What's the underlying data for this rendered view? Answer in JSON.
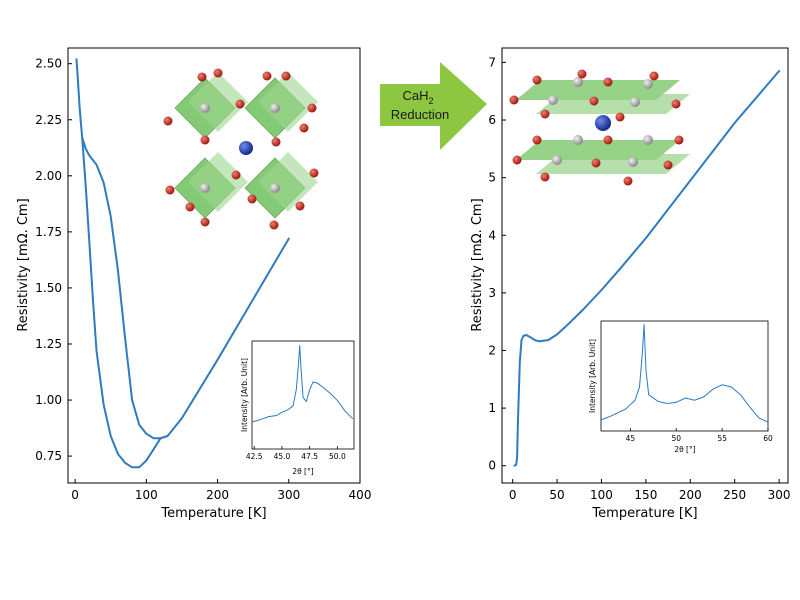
{
  "colors": {
    "curve": "#2e7bbf",
    "arrow": "#8dc641",
    "octahedron": "#5cb848",
    "oxygen": "#c0281b",
    "metal": "#a8a8a8",
    "cation": "#1f3fa8"
  },
  "arrow": {
    "line1": "CaH",
    "subscript": "2",
    "line2": "Reduction"
  },
  "chart_data": [
    {
      "type": "line",
      "title": "",
      "xlabel": "Temperature [K]",
      "ylabel": "Resistivity [mΩ. Cm]",
      "xlim": [
        -10,
        400
      ],
      "ylim": [
        0.63,
        2.57
      ],
      "xticks": [
        0,
        100,
        200,
        300,
        400
      ],
      "yticks": [
        0.75,
        1.0,
        1.25,
        1.5,
        1.75,
        2.0,
        2.25,
        2.5
      ],
      "ytick_labels": [
        "0.75",
        "1.00",
        "1.25",
        "1.50",
        "1.75",
        "2.00",
        "2.25",
        "2.50"
      ],
      "grid": false,
      "series": [
        {
          "x": [
            2,
            4,
            6,
            8,
            10,
            15,
            20,
            30,
            40,
            50,
            60,
            70,
            80,
            90,
            100,
            110,
            120,
            130,
            150,
            200,
            250,
            300
          ],
          "y": [
            2.52,
            2.42,
            2.32,
            2.24,
            2.17,
            2.12,
            2.09,
            2.05,
            1.97,
            1.82,
            1.58,
            1.28,
            1.0,
            0.89,
            0.85,
            0.83,
            0.83,
            0.84,
            0.92,
            1.18,
            1.45,
            1.72
          ]
        },
        {
          "x": [
            10,
            15,
            20,
            25,
            30,
            40,
            50,
            60,
            70,
            80,
            90,
            100,
            110,
            120,
            130
          ],
          "y": [
            2.17,
            1.95,
            1.7,
            1.45,
            1.22,
            0.98,
            0.84,
            0.76,
            0.72,
            0.7,
            0.7,
            0.73,
            0.78,
            0.83,
            0.84
          ]
        }
      ],
      "inset": {
        "xlabel": "2θ [°]",
        "ylabel": "Intensity [Arb. Unit]",
        "xlim": [
          42.3,
          51.5
        ],
        "xticks": [
          42.5,
          45.0,
          47.5,
          50.0
        ],
        "xtick_labels": [
          "42.5",
          "45.0",
          "47.5",
          "50.0"
        ],
        "ylim": [
          0,
          1
        ],
        "x": [
          42.3,
          43.0,
          43.8,
          44.5,
          45.0,
          45.5,
          46.0,
          46.3,
          46.5,
          46.6,
          46.7,
          46.9,
          47.2,
          47.5,
          47.8,
          48.2,
          48.7,
          49.3,
          50.0,
          50.7,
          51.4
        ],
        "y": [
          0.25,
          0.27,
          0.3,
          0.31,
          0.34,
          0.36,
          0.4,
          0.55,
          0.8,
          0.96,
          0.78,
          0.48,
          0.44,
          0.55,
          0.62,
          0.61,
          0.57,
          0.52,
          0.45,
          0.35,
          0.28
        ]
      }
    },
    {
      "type": "line",
      "title": "",
      "xlabel": "Temperature [K]",
      "ylabel": "Resistivity [mΩ. Cm]",
      "xlim": [
        -12,
        310
      ],
      "ylim": [
        -0.3,
        7.25
      ],
      "xticks": [
        0,
        50,
        100,
        150,
        200,
        250,
        300
      ],
      "yticks": [
        0,
        1,
        2,
        3,
        4,
        5,
        6,
        7
      ],
      "ytick_labels": [
        "0",
        "1",
        "2",
        "3",
        "4",
        "5",
        "6",
        "7"
      ],
      "grid": false,
      "series": [
        {
          "x": [
            2,
            4,
            5,
            6,
            8,
            10,
            12,
            15,
            20,
            25,
            30,
            40,
            50,
            60,
            80,
            100,
            120,
            150,
            200,
            250,
            300
          ],
          "y": [
            0.0,
            0.02,
            0.15,
            0.8,
            1.8,
            2.18,
            2.25,
            2.27,
            2.23,
            2.18,
            2.16,
            2.18,
            2.28,
            2.42,
            2.72,
            3.05,
            3.4,
            3.95,
            4.95,
            5.95,
            6.85
          ]
        }
      ],
      "inset": {
        "xlabel": "2θ [°]",
        "ylabel": "Intensity [Arb. Unit]",
        "xlim": [
          41.8,
          60
        ],
        "xticks": [
          45,
          50,
          55,
          60
        ],
        "xtick_labels": [
          "45",
          "50",
          "55",
          "60"
        ],
        "ylim": [
          0,
          1
        ],
        "x": [
          41.8,
          43.0,
          44.5,
          45.5,
          46.0,
          46.3,
          46.5,
          46.7,
          47.0,
          48.0,
          49.0,
          50.0,
          51.0,
          52.0,
          53.0,
          54.0,
          55.0,
          56.0,
          57.0,
          58.0,
          59.0,
          60.0
        ],
        "y": [
          0.1,
          0.14,
          0.2,
          0.28,
          0.4,
          0.7,
          0.97,
          0.55,
          0.33,
          0.27,
          0.25,
          0.26,
          0.3,
          0.28,
          0.31,
          0.38,
          0.42,
          0.4,
          0.33,
          0.22,
          0.12,
          0.08
        ]
      }
    }
  ]
}
